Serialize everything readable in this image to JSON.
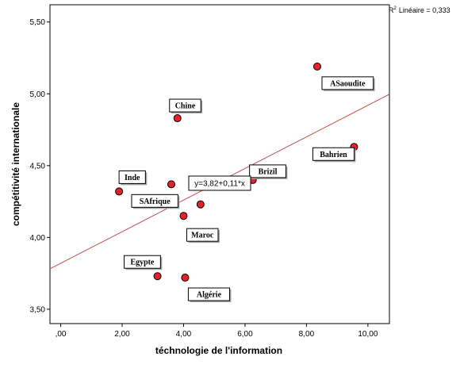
{
  "chart_data": {
    "type": "scatter",
    "xlabel": "téchnologie de l'information",
    "ylabel": "compétitivité internationale",
    "xlim": [
      -0.35,
      10.7
    ],
    "ylim": [
      3.4,
      5.62
    ],
    "xticks": [
      {
        "value": 0,
        "label": ",00"
      },
      {
        "value": 2,
        "label": "2,00"
      },
      {
        "value": 4,
        "label": "4,00"
      },
      {
        "value": 6,
        "label": "6,00"
      },
      {
        "value": 8,
        "label": "8,00"
      },
      {
        "value": 10,
        "label": "10,00"
      }
    ],
    "yticks": [
      {
        "value": 3.5,
        "label": "3,50"
      },
      {
        "value": 4.0,
        "label": "4,00"
      },
      {
        "value": 4.5,
        "label": "4,50"
      },
      {
        "value": 5.0,
        "label": "5,00"
      },
      {
        "value": 5.5,
        "label": "5,50"
      }
    ],
    "points": [
      {
        "label": "ASaoudite",
        "x": 8.35,
        "y": 5.19
      },
      {
        "label": "Chine",
        "x": 3.8,
        "y": 4.83
      },
      {
        "label": "Bahrien",
        "x": 9.55,
        "y": 4.63
      },
      {
        "label": "Brizil",
        "x": 6.25,
        "y": 4.4
      },
      {
        "label": "Inde",
        "x": 1.9,
        "y": 4.32
      },
      {
        "label": "SAfrique",
        "x": 3.6,
        "y": 4.37
      },
      {
        "label": "Maroc",
        "x": 4.0,
        "y": 4.15
      },
      {
        "label": "",
        "x": 4.55,
        "y": 4.23
      },
      {
        "label": "Egypte",
        "x": 3.15,
        "y": 3.73
      },
      {
        "label": "Algérie",
        "x": 4.05,
        "y": 3.72
      }
    ],
    "fit_line": {
      "intercept": 3.82,
      "slope": 0.11,
      "equation": "y=3,82+0,11*x",
      "r2_text": "Linéaire = 0,333"
    },
    "grid": false,
    "colors": {
      "point_fill": "#e8202a",
      "line": "#c0504d"
    }
  }
}
